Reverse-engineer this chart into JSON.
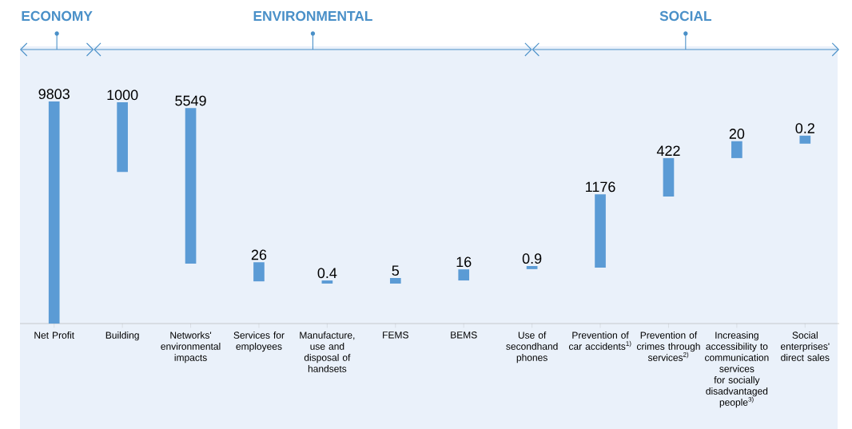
{
  "chart_data": {
    "type": "other",
    "color": "#5b9bd5",
    "data_labels": true,
    "categories": [
      "Net Profit",
      "Building",
      "Networks' environmental impacts",
      "Services for employees",
      "Manufacture, use and disposal of handsets",
      "FEMS",
      "BEMS",
      "Use of secondhand phones",
      "Prevention of car accidents$^{1)}$",
      "Prevention of crimes through services$^{2)}$",
      "Increasing accessibility to communication services for socially disadvantaged people$^{3)}$",
      "Social enterprises' direct sales"
    ],
    "values": [
      9803,
      1000,
      5549,
      26,
      0.4,
      5,
      16,
      0.9,
      1176,
      422,
      20,
      0.2
    ],
    "annotations": [
      "ECONOMY",
      "ENVIRONMENTAL",
      "SOCIAL"
    ]
  }
}
